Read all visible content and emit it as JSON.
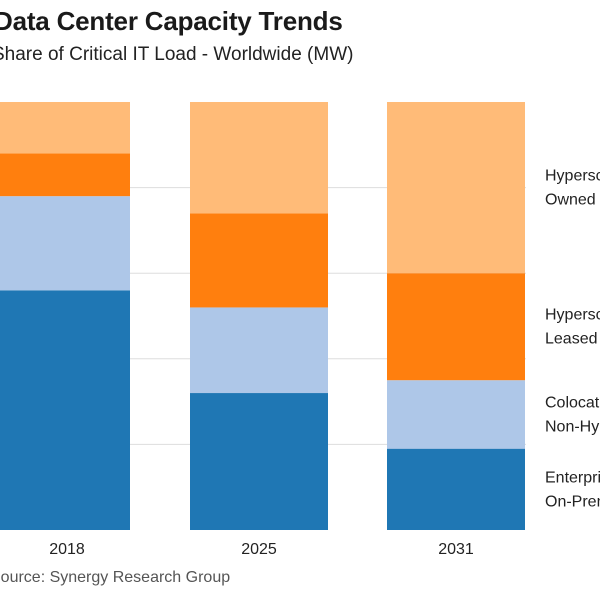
{
  "title": "Data Center Capacity Trends",
  "subtitle": "Share of Critical IT Load - Worldwide (MW)",
  "source": "Source: Synergy Research Group",
  "chart_data": {
    "type": "bar",
    "stacked": true,
    "normalized": true,
    "categories": [
      "2018",
      "2025",
      "2031"
    ],
    "series": [
      {
        "name": "Enterprise On-Premise",
        "label_lines": [
          "Enterprise",
          "On-Premise"
        ],
        "color": "#1f77b4",
        "values": [
          56,
          32,
          19
        ]
      },
      {
        "name": "Colocation Non-Hyperscale",
        "label_lines": [
          "Colocation",
          "Non-Hyperscale"
        ],
        "color": "#aec7e8",
        "values": [
          22,
          20,
          16
        ]
      },
      {
        "name": "Hyperscale Leased",
        "label_lines": [
          "Hyperscale",
          "Leased"
        ],
        "color": "#ff7f0e",
        "values": [
          10,
          22,
          25
        ]
      },
      {
        "name": "Hyperscale Owned",
        "label_lines": [
          "Hyperscale",
          "Owned"
        ],
        "color": "#ffbb78",
        "values": [
          12,
          26,
          40
        ]
      }
    ],
    "ylim": [
      0,
      100
    ],
    "gridlines": [
      20,
      40,
      60,
      80
    ],
    "legend_position": "right"
  }
}
